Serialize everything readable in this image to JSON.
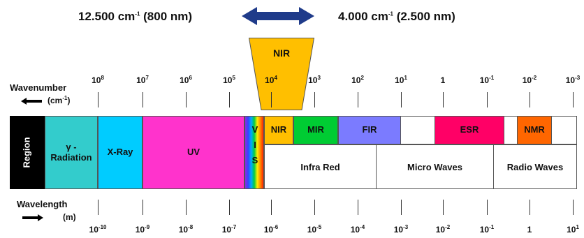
{
  "header": {
    "left_main": "12.500 cm",
    "left_sup": "-1",
    "left_rest": " (800 nm)",
    "right_main": "4.000 cm",
    "right_sup": "-1",
    "right_rest": " (2.500 nm)"
  },
  "nir_callout": "NIR",
  "wavenumber": {
    "label": "Wavenumber",
    "unit_pre": "(cm",
    "unit_sup": "-1",
    "unit_post": ")",
    "ticks": [
      {
        "base": "10",
        "exp": "8"
      },
      {
        "base": "10",
        "exp": "7"
      },
      {
        "base": "10",
        "exp": "6"
      },
      {
        "base": "10",
        "exp": "5"
      },
      {
        "base": "10",
        "exp": "4"
      },
      {
        "base": "10",
        "exp": "3"
      },
      {
        "base": "10",
        "exp": "2"
      },
      {
        "base": "10",
        "exp": "1"
      },
      {
        "base": "1",
        "exp": ""
      },
      {
        "base": "10",
        "exp": "-1"
      },
      {
        "base": "10",
        "exp": "-2"
      },
      {
        "base": "10",
        "exp": "-3"
      }
    ]
  },
  "wavelength": {
    "label": "Wavelength",
    "unit": "(m)",
    "ticks": [
      {
        "base": "10",
        "exp": "-10"
      },
      {
        "base": "10",
        "exp": "-9"
      },
      {
        "base": "10",
        "exp": "-8"
      },
      {
        "base": "10",
        "exp": "-7"
      },
      {
        "base": "10",
        "exp": "-6"
      },
      {
        "base": "10",
        "exp": "-5"
      },
      {
        "base": "10",
        "exp": "-4"
      },
      {
        "base": "10",
        "exp": "-3"
      },
      {
        "base": "10",
        "exp": "-2"
      },
      {
        "base": "10",
        "exp": "-1"
      },
      {
        "base": "1",
        "exp": ""
      },
      {
        "base": "10",
        "exp": "1"
      }
    ]
  },
  "regions": {
    "region": "Region",
    "gamma_1": "γ -",
    "gamma_2": "Radiation",
    "xray": "X-Ray",
    "uv": "UV",
    "vis_1": "V",
    "vis_2": "I",
    "vis_3": "S",
    "nir": "NIR",
    "mir": "MIR",
    "fir": "FIR",
    "esr": "ESR",
    "nmr": "NMR",
    "infra_red": "Infra Red",
    "micro_waves": "Micro Waves",
    "radio_waves": "Radio Waves"
  },
  "colors": {
    "region": "#000000",
    "gamma": "#33cccc",
    "xray": "#00ccff",
    "uv": "#ff33cc",
    "nir": "#ffbf00",
    "mir": "#00cc33",
    "fir": "#7b7bff",
    "esr": "#ff0066",
    "nmr": "#ff6600",
    "arrow": "#1f3b8a"
  }
}
